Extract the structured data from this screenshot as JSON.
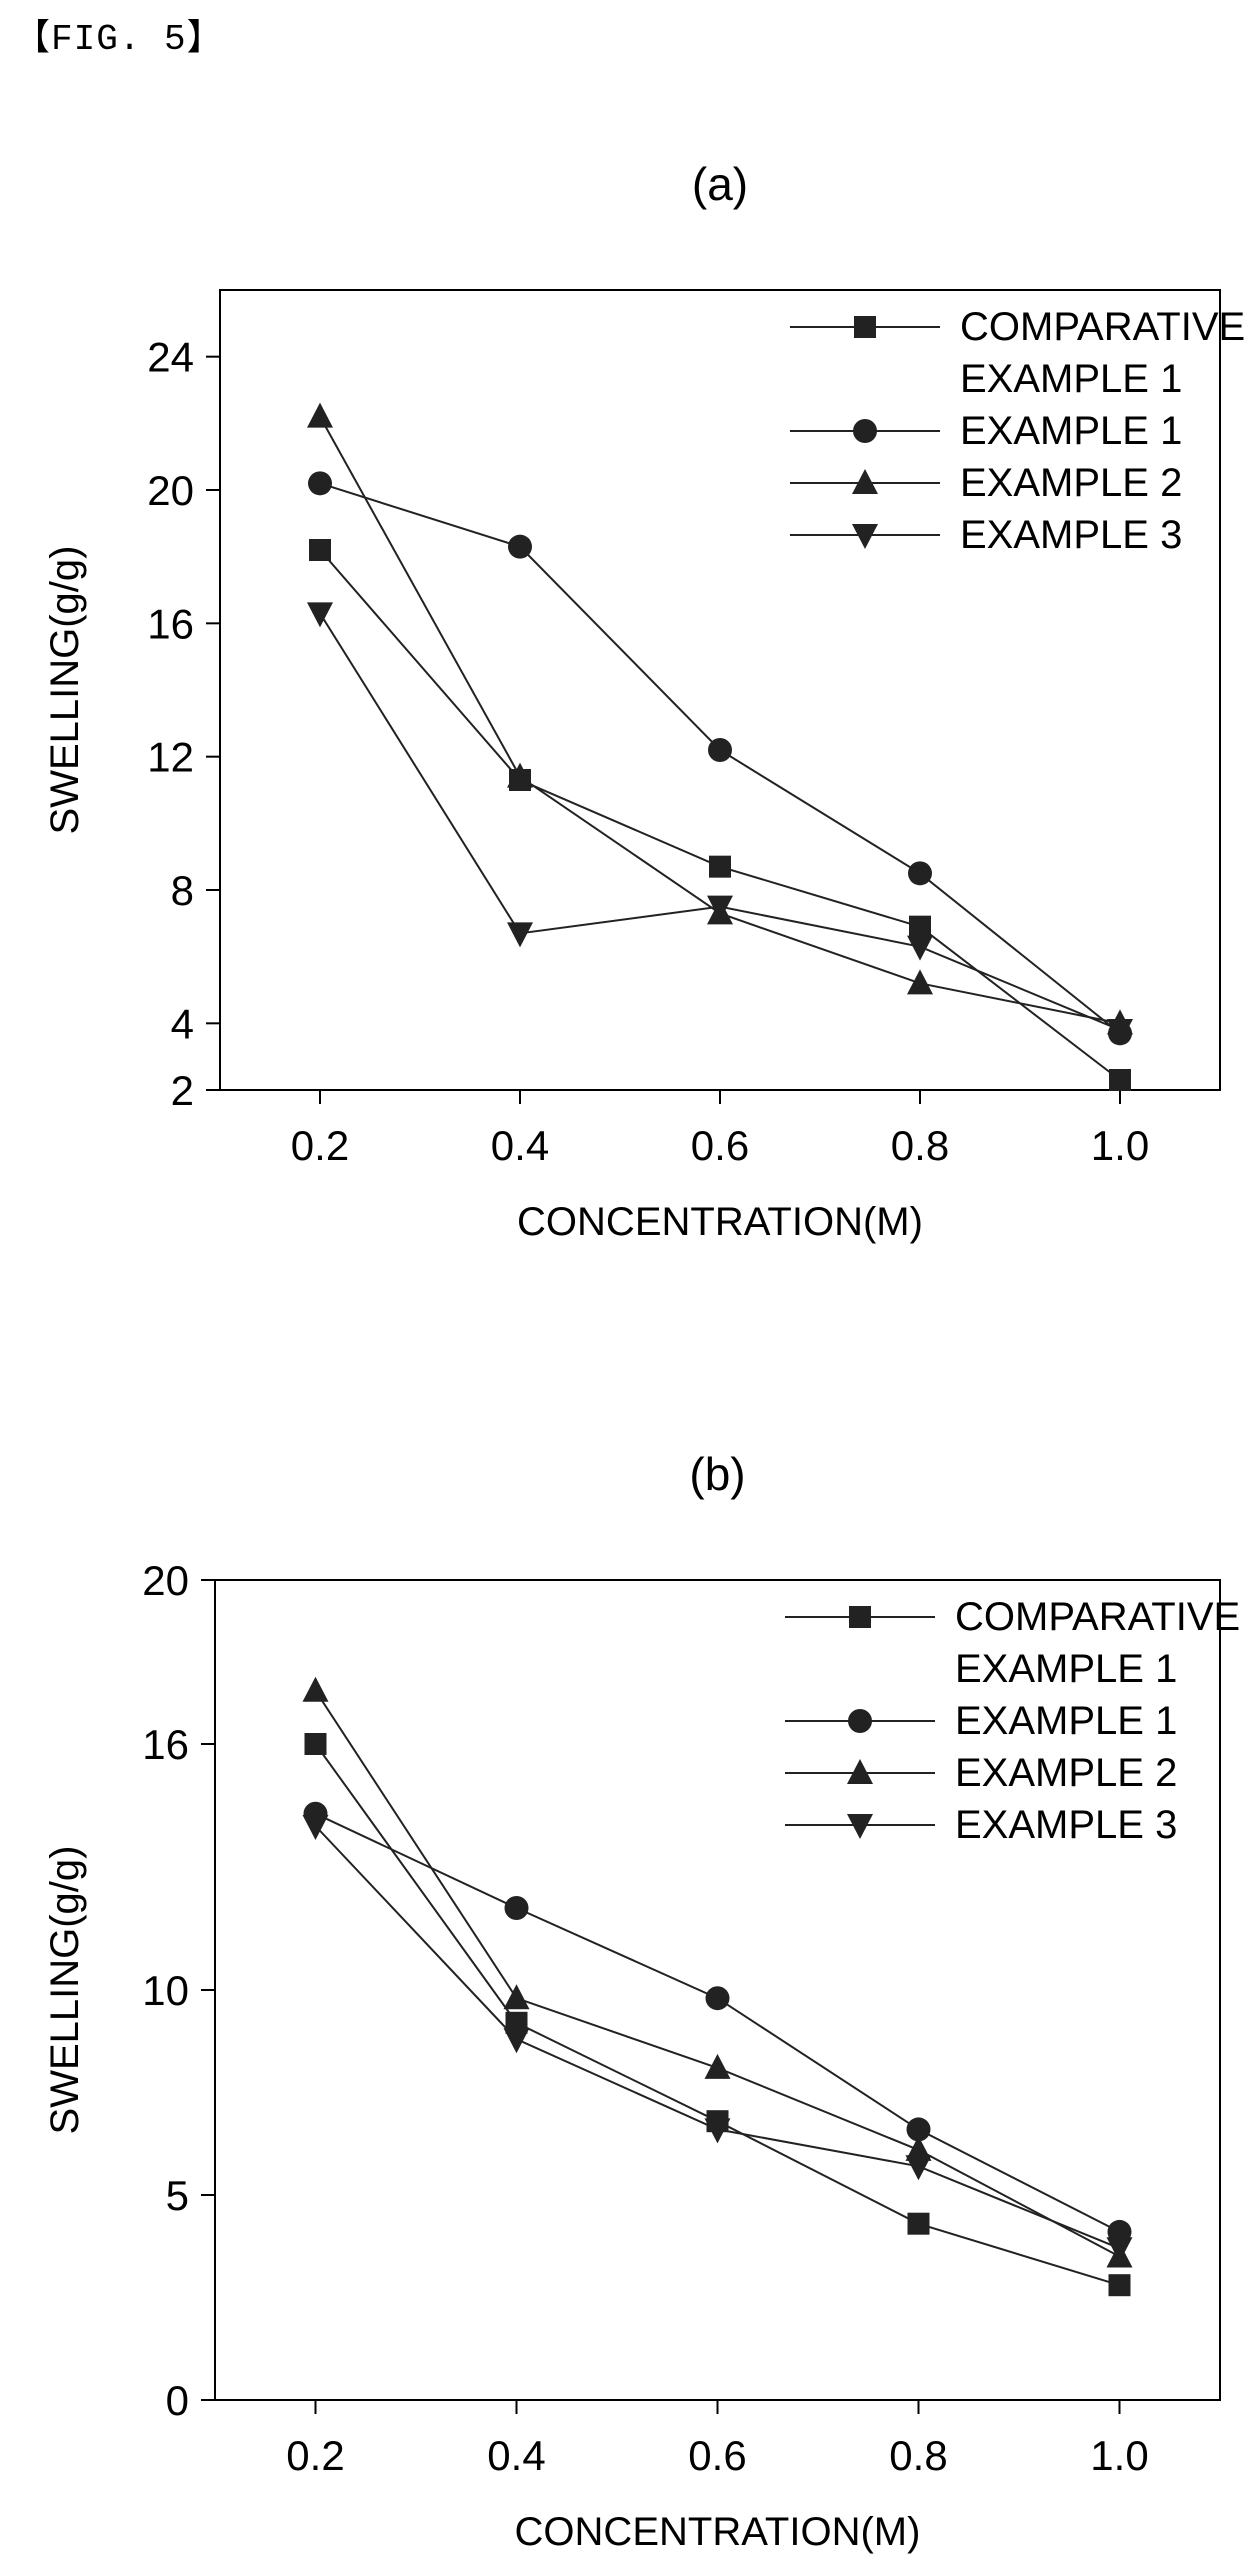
{
  "figure_label": "【FIG. 5】",
  "chart_data": [
    {
      "type": "line",
      "title": "(a)",
      "xlabel": "CONCENTRATION(M)",
      "ylabel": "SWELLING(g/g)",
      "x": [
        0.2,
        0.4,
        0.6,
        0.8,
        1.0
      ],
      "x_ticks": [
        "0.2",
        "0.4",
        "0.6",
        "0.8",
        "1.0"
      ],
      "xlim": [
        0.1,
        1.1
      ],
      "ylim": [
        2,
        26
      ],
      "y_ticks": [
        2,
        4,
        8,
        12,
        16,
        20,
        24
      ],
      "grid": false,
      "legend_position": "top-right",
      "series": [
        {
          "name": "COMPARATIVE EXAMPLE 1",
          "legend_lines": [
            "COMPARATIVE",
            "EXAMPLE 1"
          ],
          "marker": "square",
          "values": [
            18.2,
            11.3,
            8.7,
            6.9,
            2.3
          ]
        },
        {
          "name": "EXAMPLE 1",
          "legend_lines": [
            "EXAMPLE 1"
          ],
          "marker": "circle",
          "values": [
            20.2,
            18.3,
            12.2,
            8.5,
            3.7
          ]
        },
        {
          "name": "EXAMPLE 2",
          "legend_lines": [
            "EXAMPLE 2"
          ],
          "marker": "triangle-up",
          "values": [
            22.2,
            11.4,
            7.3,
            5.2,
            4.0
          ]
        },
        {
          "name": "EXAMPLE 3",
          "legend_lines": [
            "EXAMPLE 3"
          ],
          "marker": "triangle-down",
          "values": [
            16.3,
            6.7,
            7.5,
            6.3,
            3.8
          ]
        }
      ]
    },
    {
      "type": "line",
      "title": "(b)",
      "xlabel": "CONCENTRATION(M)",
      "ylabel": "SWELLING(g/g)",
      "x": [
        0.2,
        0.4,
        0.6,
        0.8,
        1.0
      ],
      "x_ticks": [
        "0.2",
        "0.4",
        "0.6",
        "0.8",
        "1.0"
      ],
      "xlim": [
        0.1,
        1.1
      ],
      "ylim": [
        0,
        20
      ],
      "y_ticks": [
        0,
        5,
        10,
        16,
        20
      ],
      "grid": false,
      "legend_position": "top-right",
      "series": [
        {
          "name": "COMPARATIVE EXAMPLE 1",
          "legend_lines": [
            "COMPARATIVE",
            "EXAMPLE 1"
          ],
          "marker": "square",
          "values": [
            16.0,
            9.2,
            6.8,
            4.3,
            2.8
          ]
        },
        {
          "name": "EXAMPLE 1",
          "legend_lines": [
            "EXAMPLE 1"
          ],
          "marker": "circle",
          "values": [
            14.3,
            12.0,
            9.8,
            6.6,
            4.1
          ]
        },
        {
          "name": "EXAMPLE 2",
          "legend_lines": [
            "EXAMPLE 2"
          ],
          "marker": "triangle-up",
          "values": [
            17.3,
            9.8,
            8.1,
            6.1,
            3.5
          ]
        },
        {
          "name": "EXAMPLE 3",
          "legend_lines": [
            "EXAMPLE 3"
          ],
          "marker": "triangle-down",
          "values": [
            14.0,
            8.8,
            6.6,
            5.7,
            3.7
          ]
        }
      ]
    }
  ]
}
